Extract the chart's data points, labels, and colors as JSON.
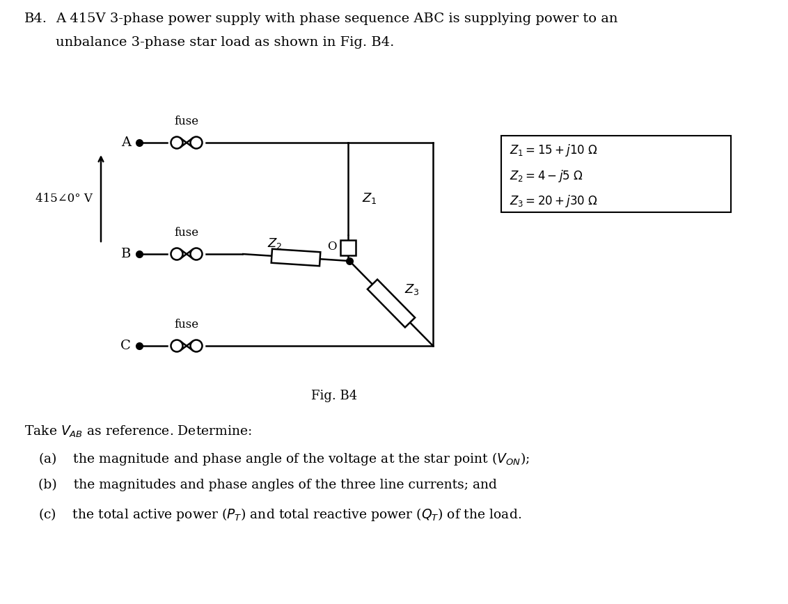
{
  "title_prefix": "B4.",
  "title_line1": "  A 415V 3-phase power supply with phase sequence ABC is supplying power to an",
  "title_line2": "  unbalance 3-phase star load as shown in Fig. B4.",
  "fig_caption": "Fig. B4",
  "voltage_label": "415∠0° V",
  "phase_A_label": "A",
  "phase_B_label": "B",
  "phase_C_label": "C",
  "fuse_label": "fuse",
  "star_point_label": "O",
  "Z1_label": "Z",
  "Z1_sub": "1",
  "Z2_label": "Z",
  "Z2_sub": "2",
  "Z3_label": "Z",
  "Z3_sub": "3",
  "box_line1": "$Z_1 = 15 + j10\\ \\Omega$",
  "box_line2": "$Z_2 = 4 - j5\\ \\Omega$",
  "box_line3": "$Z_3 = 20 + j30\\ \\Omega$",
  "take_ref": "Take $V_{AB}$ as reference. Determine:",
  "q_a": "(a)    the magnitude and phase angle of the voltage at the star point ($V_{ON}$);",
  "q_b": "(b)    the magnitudes and phase angles of the three line currents; and",
  "q_c": "(c)    the total active power ($P_T$) and total reactive power ($Q_T$) of the load.",
  "bg_color": "#ffffff"
}
